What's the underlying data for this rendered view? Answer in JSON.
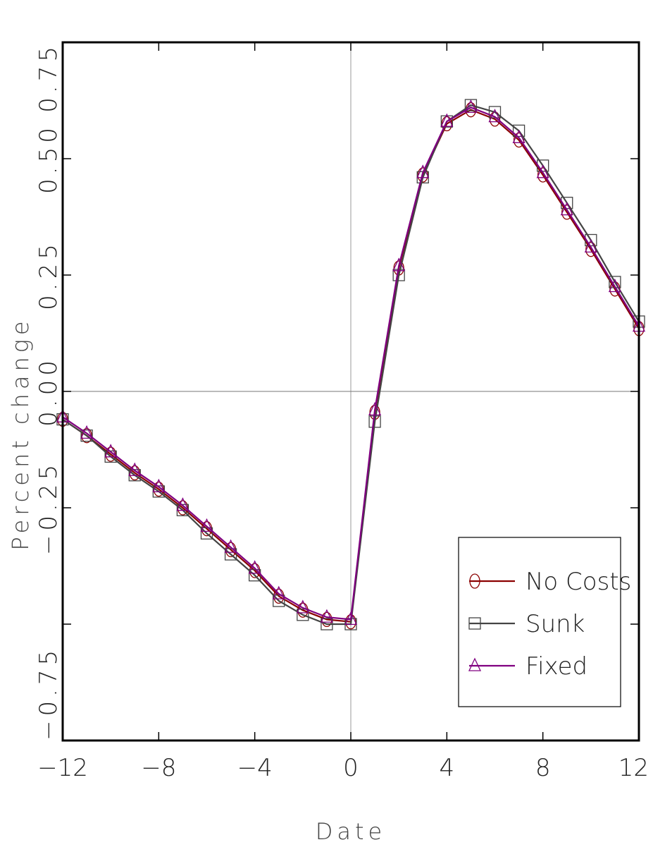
{
  "chart_data": {
    "type": "line",
    "xlabel": "Date",
    "ylabel": "Percent change",
    "xlim": [
      -12,
      12
    ],
    "ylim": [
      -0.75,
      0.75
    ],
    "x_ticks": [
      -12,
      -8,
      -4,
      0,
      4,
      8,
      12
    ],
    "x_tick_labels": [
      "−12",
      "−8",
      "−4",
      "0",
      "4",
      "8",
      "12"
    ],
    "y_ticks": [
      -0.75,
      -0.5,
      -0.25,
      0.0,
      0.25,
      0.5,
      0.75
    ],
    "y_tick_labels": [
      "−0.75",
      "",
      "−0.25",
      "0.00",
      "0.25",
      "0.50",
      "0.75"
    ],
    "reference_lines": {
      "x": 0,
      "y": 0
    },
    "grid": false,
    "legend_position": "bottom-right",
    "x": [
      -12,
      -11,
      -10,
      -9,
      -8,
      -7,
      -6,
      -5,
      -4,
      -3,
      -2,
      -1,
      0,
      1,
      2,
      3,
      4,
      5,
      6,
      7,
      8,
      9,
      10,
      11,
      12
    ],
    "series": [
      {
        "name": "No Costs",
        "color": "#8b0000",
        "marker": "circle",
        "values": [
          -0.06,
          -0.095,
          -0.135,
          -0.175,
          -0.21,
          -0.25,
          -0.295,
          -0.34,
          -0.385,
          -0.44,
          -0.47,
          -0.49,
          -0.495,
          -0.045,
          0.265,
          0.465,
          0.575,
          0.605,
          0.585,
          0.54,
          0.465,
          0.385,
          0.305,
          0.22,
          0.135
        ]
      },
      {
        "name": "Sunk",
        "color": "#444444",
        "marker": "square",
        "values": [
          -0.06,
          -0.095,
          -0.14,
          -0.18,
          -0.215,
          -0.255,
          -0.305,
          -0.35,
          -0.395,
          -0.45,
          -0.48,
          -0.5,
          -0.5,
          -0.065,
          0.25,
          0.46,
          0.58,
          0.615,
          0.6,
          0.56,
          0.485,
          0.405,
          0.325,
          0.235,
          0.15
        ]
      },
      {
        "name": "Fixed",
        "color": "#800080",
        "marker": "triangle",
        "values": [
          -0.055,
          -0.09,
          -0.13,
          -0.17,
          -0.205,
          -0.245,
          -0.29,
          -0.335,
          -0.38,
          -0.435,
          -0.465,
          -0.485,
          -0.49,
          -0.04,
          0.27,
          0.47,
          0.58,
          0.61,
          0.59,
          0.545,
          0.47,
          0.39,
          0.31,
          0.225,
          0.14
        ]
      }
    ]
  }
}
